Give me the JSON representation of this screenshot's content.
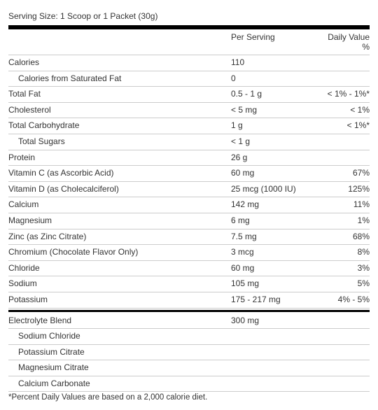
{
  "serving_size": "Serving Size: 1 Scoop or 1 Packet (30g)",
  "headers": {
    "per_serving": "Per Serving",
    "dv_line1": "Daily Value",
    "dv_line2": "%"
  },
  "rows": [
    {
      "name": "Calories",
      "serving": "110",
      "dv": "",
      "indent": false
    },
    {
      "name": "Calories from Saturated Fat",
      "serving": "0",
      "dv": "",
      "indent": true
    },
    {
      "name": "Total Fat",
      "serving": "0.5 - 1 g",
      "dv": "< 1% - 1%*",
      "indent": false
    },
    {
      "name": "Cholesterol",
      "serving": "< 5 mg",
      "dv": "< 1%",
      "indent": false
    },
    {
      "name": "Total Carbohydrate",
      "serving": "1 g",
      "dv": "< 1%*",
      "indent": false
    },
    {
      "name": "Total Sugars",
      "serving": "< 1 g",
      "dv": "",
      "indent": true
    },
    {
      "name": "Protein",
      "serving": "26 g",
      "dv": "",
      "indent": false
    },
    {
      "name": "Vitamin C (as Ascorbic Acid)",
      "serving": "60 mg",
      "dv": "67%",
      "indent": false
    },
    {
      "name": "Vitamin D (as Cholecalciferol)",
      "serving": "25 mcg (1000  IU)",
      "dv": "125%",
      "indent": false
    },
    {
      "name": "Calcium",
      "serving": "142 mg",
      "dv": "11%",
      "indent": false
    },
    {
      "name": "Magnesium",
      "serving": "6 mg",
      "dv": "1%",
      "indent": false
    },
    {
      "name": "Zinc (as Zinc Citrate)",
      "serving": "7.5 mg",
      "dv": "68%",
      "indent": false
    },
    {
      "name": "Chromium (Chocolate Flavor Only)",
      "serving": "3 mcg",
      "dv": "8%",
      "indent": false
    },
    {
      "name": "Chloride",
      "serving": "60 mg",
      "dv": "3%",
      "indent": false
    },
    {
      "name": "Sodium",
      "serving": "105 mg",
      "dv": "5%",
      "indent": false
    },
    {
      "name": "Potassium",
      "serving": "175 - 217 mg",
      "dv": "4% - 5%",
      "indent": false
    }
  ],
  "blend_title": {
    "name": "Electrolyte Blend",
    "serving": "300 mg",
    "dv": ""
  },
  "blend_items": [
    "Sodium Chloride",
    "Potassium Citrate",
    "Magnesium Citrate",
    "Calcium Carbonate"
  ],
  "footnote": "*Percent Daily Values are based on a 2,000 calorie diet."
}
